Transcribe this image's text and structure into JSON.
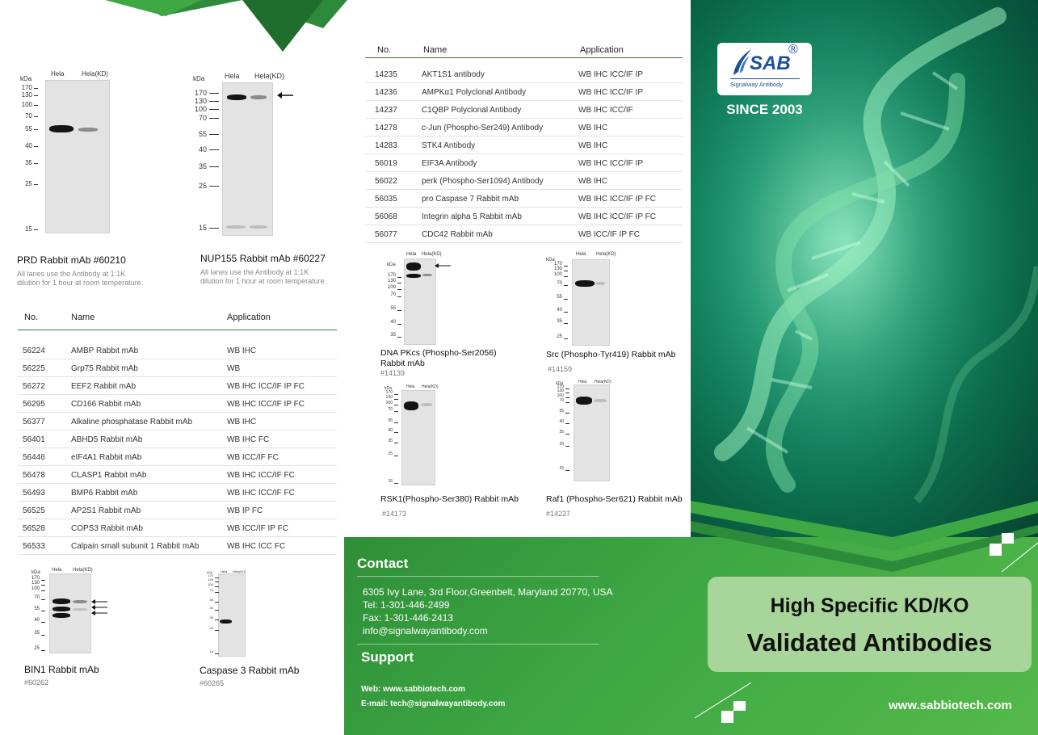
{
  "blots": {
    "prd": {
      "kda": "kDa",
      "lanes": [
        "Hela",
        "Hela(KD)"
      ],
      "markers": [
        "170",
        "130",
        "100",
        "70",
        "55",
        "40",
        "35",
        "25",
        "15"
      ],
      "title": "PRD Rabbit mAb  #60210",
      "note": "All lanes use the Antibody at 1:1K dilution for 1 hour at room temperature."
    },
    "nup155": {
      "kda": "kDa",
      "lanes": [
        "Hela",
        "Hela(KD)"
      ],
      "markers": [
        "170",
        "130",
        "100",
        "70",
        "55",
        "40",
        "35",
        "25",
        "15"
      ],
      "title": "NUP155 Rabbit mAb #60227",
      "note": "All lanes use the Antibody at 1:1K dilution for 1 hour at room temperature."
    },
    "dnapkcs": {
      "kda": "kDa",
      "lanes": [
        "Hela",
        "Hela(KD)"
      ],
      "markers": [
        "170",
        "130",
        "100",
        "70",
        "55",
        "40",
        "35"
      ],
      "title": "DNA PKcs (Phospho-Ser2056) Rabbit mAb",
      "sub": "#14139"
    },
    "src": {
      "kda": "kDa",
      "lanes": [
        "Hela",
        "Hela(KD)"
      ],
      "markers": [
        "170",
        "130",
        "100",
        "70",
        "55",
        "40",
        "35",
        "25"
      ],
      "title": "Src (Phospho-Tyr419) Rabbit mAb",
      "sub": "#14159"
    },
    "rsk1": {
      "kda": "kDa",
      "lanes": [
        "Hela",
        "Hela(KD)"
      ],
      "markers": [
        "170",
        "130",
        "100",
        "70",
        "55",
        "40",
        "35",
        "25",
        "15"
      ],
      "title": "RSK1(Phospho-Ser380) Rabbit mAb",
      "sub": "#14173"
    },
    "raf1": {
      "kda": "kDa",
      "lanes": [
        "Hela",
        "Hela(KD)"
      ],
      "markers": [
        "170",
        "130",
        "100",
        "70",
        "55",
        "40",
        "35",
        "25",
        "15"
      ],
      "title": "Raf1 (Phospho-Ser621) Rabbit mAb",
      "sub": "#14227"
    },
    "bin1": {
      "kda": "kDa",
      "lanes": [
        "Hela",
        "Hela(KD)"
      ],
      "markers": [
        "170",
        "130",
        "100",
        "70",
        "55",
        "40",
        "35",
        "25"
      ],
      "title": "BIN1 Rabbit mAb",
      "sub": "#60262"
    },
    "casp3": {
      "kda": "kDa",
      "lanes": [
        "Hela",
        "Hela(KD)"
      ],
      "markers": [
        "170",
        "130",
        "100",
        "70",
        "55",
        "40",
        "35",
        "25",
        "15"
      ],
      "title": "Caspase 3 Rabbit mAb",
      "sub": "#60265"
    }
  },
  "table_top": {
    "headers": [
      "No.",
      "Name",
      "Application"
    ],
    "rows": [
      [
        "14235",
        "AKT1S1 antibody",
        "WB IHC ICC/IF IP"
      ],
      [
        "14236",
        "AMPKα1 Polyclonal Antibody",
        "WB IHC ICC/IF IP"
      ],
      [
        "14237",
        "C1QBP Polyclonal Antibody",
        "WB IHC ICC/IF"
      ],
      [
        "14278",
        "c-Jun (Phospho-Ser249) Antibody",
        "WB IHC"
      ],
      [
        "14283",
        "STK4 Antibody",
        "WB IHC"
      ],
      [
        "56019",
        "EIF3A Antibody",
        "WB IHC ICC/IF IP"
      ],
      [
        "56022",
        "perk (Phospho-Ser1094) Antibody",
        "WB IHC"
      ],
      [
        "56035",
        "pro Caspase 7 Rabbit mAb",
        "WB IHC ICC/IF IP FC"
      ],
      [
        "56068",
        "Integrin alpha 5 Rabbit mAb",
        "WB IHC ICC/IF IP FC"
      ],
      [
        "56077",
        "CDC42 Rabbit mAb",
        "WB ICC/IF IP FC"
      ]
    ]
  },
  "table_left": {
    "headers": [
      "No.",
      "Name",
      "Application"
    ],
    "rows": [
      [
        "56224",
        "AMBP Rabbit mAb",
        "WB IHC"
      ],
      [
        "56225",
        "Grp75 Rabbit mAb",
        "WB"
      ],
      [
        "56272",
        "EEF2 Rabbit mAb",
        "WB IHC ICC/IF IP FC"
      ],
      [
        "56295",
        "CD166 Rabbit mAb",
        "WB IHC ICC/IF IP FC"
      ],
      [
        "56377",
        "Alkaline phosphatase Rabbit mAb",
        "WB IHC"
      ],
      [
        "56401",
        "ABHD5 Rabbit mAb",
        "WB IHC FC"
      ],
      [
        "56446",
        "eIF4A1 Rabbit mAb",
        "WB ICC/IF FC"
      ],
      [
        "56478",
        "CLASP1 Rabbit mAb",
        "WB IHC ICC/IF FC"
      ],
      [
        "56493",
        "BMP6 Rabbit mAb",
        "WB IHC ICC/IF FC"
      ],
      [
        "56525",
        "AP2S1 Rabbit mAb",
        "WB IP FC"
      ],
      [
        "56528",
        "COPS3 Rabbit mAb",
        "WB ICC/IF IP FC"
      ],
      [
        "56533",
        "Calpain small subunit 1 Rabbit mAb",
        "WB IHC ICC FC"
      ]
    ]
  },
  "contact": {
    "heading": "Contact",
    "address": "6305 Ivy Lane, 3rd Floor,Greenbelt, Maryland 20770, USA",
    "tel": "Tel: 1-301-446-2499",
    "fax": "Fax: 1-301-446-2413",
    "email": "info@signalwayantibody.com"
  },
  "support": {
    "heading": "Support",
    "web": "Web:  www.sabbiotech.com",
    "email": "E-mail:  tech@signalwayantibody.com"
  },
  "brand": {
    "logo_text": "SAB",
    "logo_sub": "Signalway Antibody",
    "registered": "®",
    "since": "SINCE 2003",
    "badge_line1": "High Specific KD/KO",
    "badge_line2": "Validated Antibodies",
    "website": "www.sabbiotech.com"
  },
  "colors": {
    "brand_green": "#3ea844",
    "dark_green": "#2d7a3c",
    "badge_green": "#a8d69a",
    "logo_blue": "#1c4fa0"
  }
}
